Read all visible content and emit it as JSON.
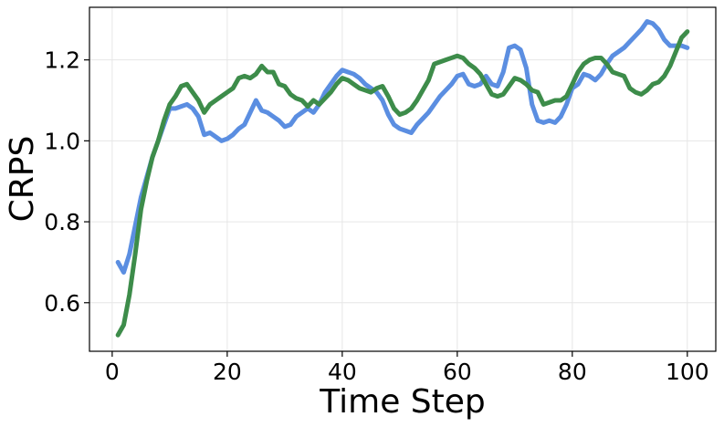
{
  "chart_data": {
    "type": "line",
    "title": "",
    "xlabel": "Time Step",
    "ylabel": "CRPS",
    "xlim": [
      -3.95,
      104.95
    ],
    "ylim": [
      0.48,
      1.33
    ],
    "xticks": [
      0,
      20,
      40,
      60,
      80,
      100
    ],
    "yticks": [
      0.6,
      0.8,
      1.0,
      1.2
    ],
    "xtick_labels": [
      "0",
      "20",
      "40",
      "60",
      "80",
      "100"
    ],
    "ytick_labels": [
      "0.6",
      "0.8",
      "1.0",
      "1.2"
    ],
    "grid": true,
    "legend": "none",
    "series": [
      {
        "color": "#5b8ee1",
        "x": [
          1,
          2,
          3,
          4,
          5,
          6,
          7,
          8,
          9,
          10,
          11,
          12,
          13,
          14,
          15,
          16,
          17,
          18,
          19,
          20,
          21,
          22,
          23,
          24,
          25,
          26,
          27,
          28,
          29,
          30,
          31,
          32,
          33,
          34,
          35,
          36,
          37,
          38,
          39,
          40,
          41,
          42,
          43,
          44,
          45,
          46,
          47,
          48,
          49,
          50,
          51,
          52,
          53,
          54,
          55,
          56,
          57,
          58,
          59,
          60,
          61,
          62,
          63,
          64,
          65,
          66,
          67,
          68,
          69,
          70,
          71,
          72,
          73,
          74,
          75,
          76,
          77,
          78,
          79,
          80,
          81,
          82,
          83,
          84,
          85,
          86,
          87,
          88,
          89,
          90,
          91,
          92,
          93,
          94,
          95,
          96,
          97,
          98,
          99,
          100
        ],
        "y": [
          0.7,
          0.675,
          0.72,
          0.79,
          0.86,
          0.91,
          0.96,
          1.0,
          1.04,
          1.08,
          1.08,
          1.085,
          1.09,
          1.08,
          1.06,
          1.015,
          1.02,
          1.01,
          1.0,
          1.005,
          1.015,
          1.03,
          1.04,
          1.07,
          1.1,
          1.075,
          1.07,
          1.06,
          1.05,
          1.035,
          1.04,
          1.06,
          1.07,
          1.08,
          1.07,
          1.09,
          1.12,
          1.14,
          1.16,
          1.175,
          1.17,
          1.165,
          1.155,
          1.14,
          1.13,
          1.12,
          1.1,
          1.065,
          1.04,
          1.03,
          1.025,
          1.02,
          1.04,
          1.055,
          1.07,
          1.09,
          1.11,
          1.125,
          1.14,
          1.16,
          1.165,
          1.14,
          1.135,
          1.14,
          1.16,
          1.14,
          1.135,
          1.17,
          1.23,
          1.235,
          1.225,
          1.18,
          1.09,
          1.05,
          1.045,
          1.05,
          1.045,
          1.06,
          1.09,
          1.13,
          1.14,
          1.165,
          1.16,
          1.15,
          1.165,
          1.19,
          1.21,
          1.22,
          1.23,
          1.245,
          1.26,
          1.275,
          1.295,
          1.29,
          1.275,
          1.25,
          1.235,
          1.235,
          1.235,
          1.23
        ]
      },
      {
        "color": "#3d8c4a",
        "x": [
          1,
          2,
          3,
          4,
          5,
          6,
          7,
          8,
          9,
          10,
          11,
          12,
          13,
          14,
          15,
          16,
          17,
          18,
          19,
          20,
          21,
          22,
          23,
          24,
          25,
          26,
          27,
          28,
          29,
          30,
          31,
          32,
          33,
          34,
          35,
          36,
          37,
          38,
          39,
          40,
          41,
          42,
          43,
          44,
          45,
          46,
          47,
          48,
          49,
          50,
          51,
          52,
          53,
          54,
          55,
          56,
          57,
          58,
          59,
          60,
          61,
          62,
          63,
          64,
          65,
          66,
          67,
          68,
          69,
          70,
          71,
          72,
          73,
          74,
          75,
          76,
          77,
          78,
          79,
          80,
          81,
          82,
          83,
          84,
          85,
          86,
          87,
          88,
          89,
          90,
          91,
          92,
          93,
          94,
          95,
          96,
          97,
          98,
          99,
          100
        ],
        "y": [
          0.52,
          0.545,
          0.62,
          0.72,
          0.83,
          0.9,
          0.96,
          1.0,
          1.05,
          1.09,
          1.11,
          1.135,
          1.14,
          1.12,
          1.1,
          1.07,
          1.09,
          1.1,
          1.11,
          1.12,
          1.13,
          1.155,
          1.16,
          1.155,
          1.165,
          1.185,
          1.17,
          1.17,
          1.14,
          1.135,
          1.115,
          1.105,
          1.1,
          1.085,
          1.1,
          1.09,
          1.105,
          1.12,
          1.14,
          1.155,
          1.15,
          1.14,
          1.13,
          1.125,
          1.12,
          1.13,
          1.135,
          1.11,
          1.08,
          1.065,
          1.07,
          1.08,
          1.1,
          1.125,
          1.15,
          1.19,
          1.195,
          1.2,
          1.205,
          1.21,
          1.205,
          1.19,
          1.18,
          1.165,
          1.14,
          1.115,
          1.11,
          1.115,
          1.135,
          1.155,
          1.15,
          1.14,
          1.125,
          1.12,
          1.09,
          1.095,
          1.1,
          1.1,
          1.11,
          1.14,
          1.17,
          1.19,
          1.2,
          1.205,
          1.205,
          1.19,
          1.17,
          1.165,
          1.16,
          1.13,
          1.12,
          1.115,
          1.125,
          1.14,
          1.145,
          1.16,
          1.185,
          1.22,
          1.255,
          1.27
        ]
      }
    ]
  }
}
